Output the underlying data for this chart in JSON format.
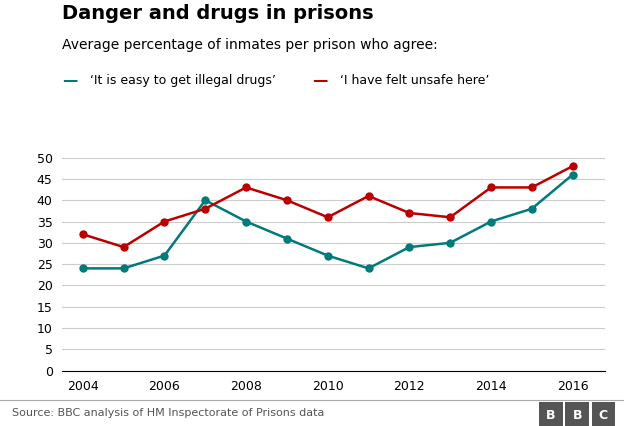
{
  "title": "Danger and drugs in prisons",
  "subtitle": "Average percentage of inmates per prison who agree:",
  "years": [
    2004,
    2005,
    2006,
    2007,
    2008,
    2009,
    2010,
    2011,
    2012,
    2013,
    2014,
    2015,
    2016
  ],
  "drugs_line": [
    24,
    24,
    27,
    40,
    35,
    31,
    27,
    24,
    29,
    30,
    35,
    38,
    46
  ],
  "unsafe_line": [
    32,
    29,
    35,
    38,
    43,
    40,
    36,
    41,
    37,
    36,
    43,
    43,
    48
  ],
  "drugs_color": "#007a7a",
  "unsafe_color": "#bb0000",
  "drugs_label": "‘It is easy to get illegal drugs’",
  "unsafe_label": "‘I have felt unsafe here’",
  "ylim": [
    0,
    52
  ],
  "yticks": [
    0,
    5,
    10,
    15,
    20,
    25,
    30,
    35,
    40,
    45,
    50
  ],
  "xlabel_sparse": [
    2004,
    2006,
    2008,
    2010,
    2012,
    2014,
    2016
  ],
  "source_text": "Source: BBC analysis of HM Inspectorate of Prisons data",
  "background_color": "#ffffff",
  "grid_color": "#cccccc",
  "title_fontsize": 14,
  "subtitle_fontsize": 10,
  "legend_fontsize": 9,
  "tick_fontsize": 9,
  "source_fontsize": 8,
  "line_width": 1.8,
  "marker_size": 5,
  "bbc_box_color": "#555555",
  "bbc_text_color": "#ffffff"
}
